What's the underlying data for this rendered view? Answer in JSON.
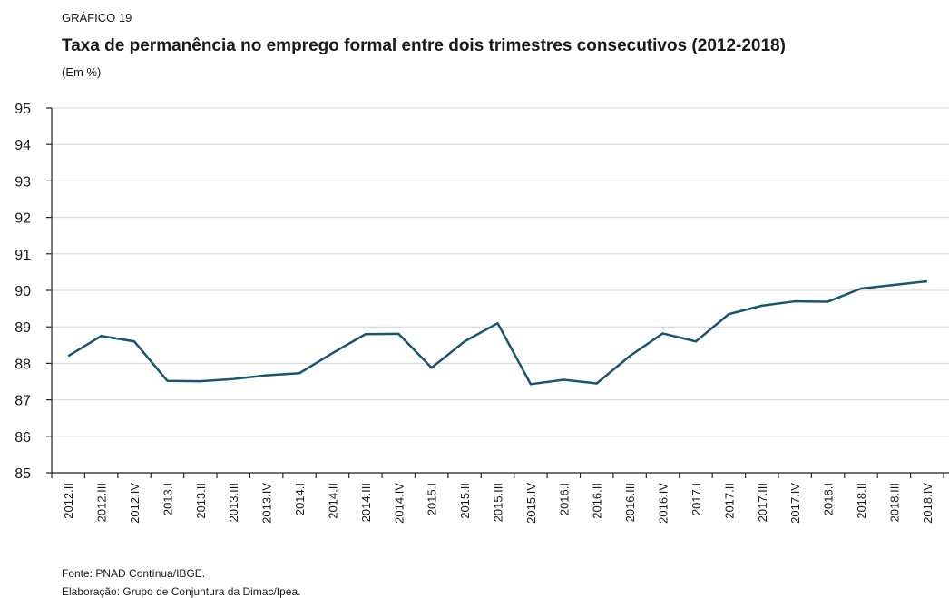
{
  "chart_data": {
    "type": "line",
    "label": "GRÁFICO 19",
    "title": "Taxa de permanência no emprego formal entre dois trimestres consecutivos (2012-2018)",
    "subtitle": "(Em %)",
    "categories": [
      "2012.II",
      "2012.III",
      "2012.IV",
      "2013.I",
      "2013.II",
      "2013.III",
      "2013.IV",
      "2014.I",
      "2014.II",
      "2014.III",
      "2014.IV",
      "2015.I",
      "2015.II",
      "2015.III",
      "2015.IV",
      "2016.I",
      "2016.II",
      "2016.III",
      "2016.IV",
      "2017.I",
      "2017.II",
      "2017.III",
      "2017.IV",
      "2018.I",
      "2018.II",
      "2018.III",
      "2018.IV"
    ],
    "values": [
      88.2,
      88.75,
      88.6,
      87.52,
      87.51,
      87.57,
      87.67,
      87.73,
      88.28,
      88.8,
      88.81,
      87.88,
      88.6,
      89.1,
      87.43,
      87.55,
      87.45,
      88.2,
      88.82,
      88.6,
      89.35,
      89.58,
      89.7,
      89.69,
      90.05,
      90.15,
      90.25
    ],
    "color": "#1a5570",
    "ylim": [
      85,
      95
    ],
    "yticks": [
      85,
      86,
      87,
      88,
      89,
      90,
      91,
      92,
      93,
      94,
      95
    ],
    "grid": true,
    "notes": [
      "Fonte: PNAD Contínua/IBGE.",
      "Elaboração: Grupo de Conjuntura da Dimac/Ipea."
    ]
  }
}
